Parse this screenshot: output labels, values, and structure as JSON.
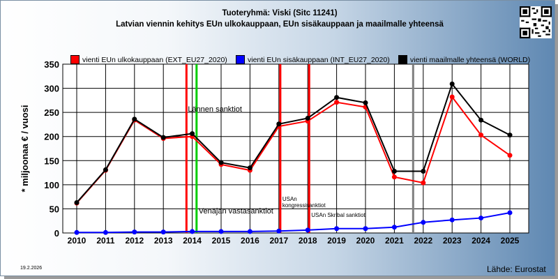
{
  "header": {
    "title": "Tuoteryhmä: Viski (Sitc 11241)",
    "subtitle": "Latvian viennin kehitys EUn ulkokauppaan, EUn sisäkauppaan ja maailmalle yhteensä"
  },
  "footer": {
    "date": "19.2.2026",
    "source": "Lähde: Eurostat"
  },
  "chart_data": {
    "type": "line",
    "ylabel": "* miljoonaa € / vuosi",
    "xlabel": "",
    "ylim": [
      0,
      350
    ],
    "yticks": [
      0,
      50,
      100,
      150,
      200,
      250,
      300,
      350
    ],
    "x": [
      "2010",
      "2011",
      "2012",
      "2013",
      "2014",
      "2015",
      "2016",
      "2017",
      "2018",
      "2019",
      "2020",
      "2021",
      "2022",
      "2023",
      "2024",
      "2025"
    ],
    "grid": true,
    "legend_position": "top",
    "series": [
      {
        "name": "vienti EUn ulkokauppaan (EXT_EU27_2020)",
        "color": "#ff0000",
        "values": [
          62,
          130,
          234,
          196,
          200,
          142,
          130,
          221,
          232,
          271,
          261,
          116,
          104,
          282,
          203,
          161
        ]
      },
      {
        "name": "vienti EUn sisäkauppaan (INT_EU27_2020)",
        "color": "#0000ff",
        "values": [
          1,
          1,
          2,
          2,
          3,
          3,
          3,
          4,
          6,
          9,
          9,
          12,
          22,
          27,
          31,
          42
        ]
      },
      {
        "name": "vienti maailmalle yhteensä (WORLD)",
        "color": "#000000",
        "values": [
          63,
          131,
          236,
          198,
          206,
          146,
          135,
          226,
          238,
          281,
          270,
          128,
          128,
          309,
          234,
          203
        ]
      }
    ],
    "event_lines": [
      {
        "x": 2013.8,
        "color": "#ff0000",
        "label": "Lännen sanktiot"
      },
      {
        "x": 2014.15,
        "color": "#00cc00",
        "label": "Venäjän vastasanktiot"
      },
      {
        "x": 2017.05,
        "color": "#ff0000",
        "label": "USAn kongressisanktiot"
      },
      {
        "x": 2018.05,
        "color": "#ff0000",
        "label": "USAn Skribal sanktiot"
      },
      {
        "x": 2021.65,
        "color": "#808080",
        "label": ""
      }
    ]
  }
}
